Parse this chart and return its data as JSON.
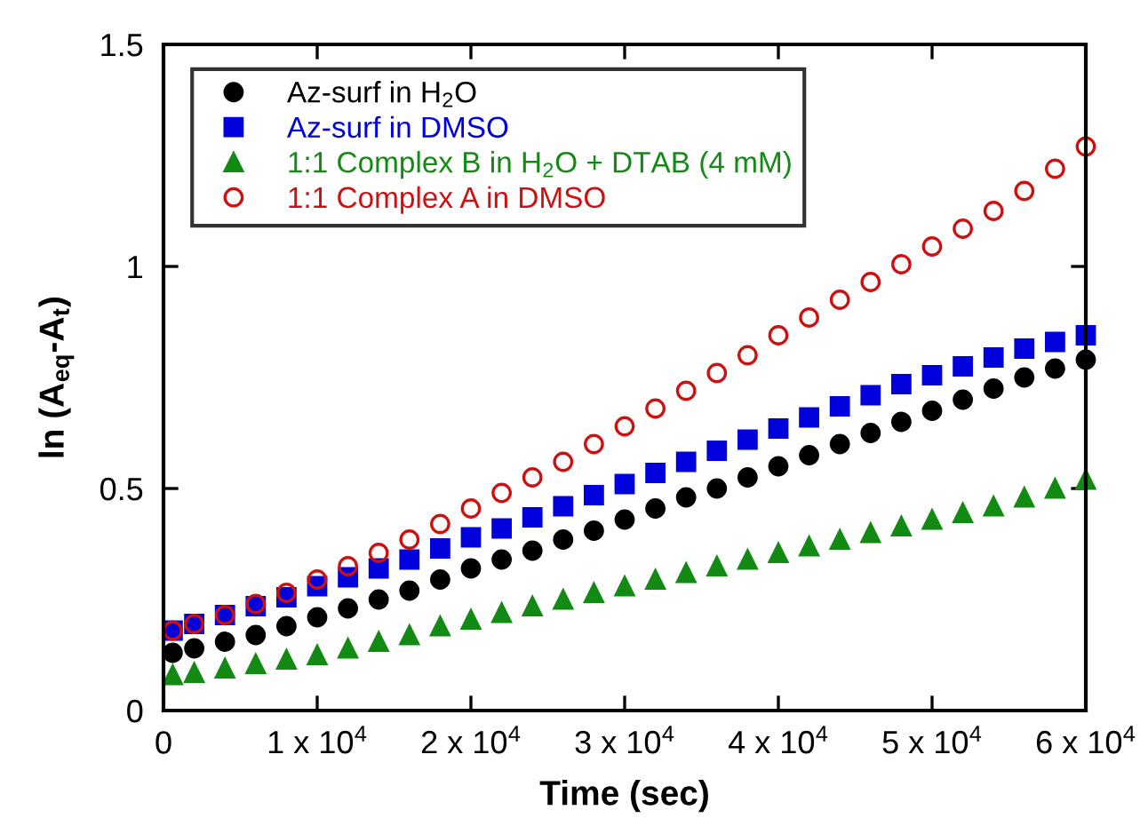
{
  "chart_data": {
    "type": "scatter",
    "xlabel": "Time (sec)",
    "ylabel": "ln (A$_{eq}$-A$_{t}$)",
    "x": [
      600,
      2000,
      4000,
      6000,
      8000,
      10000,
      12000,
      14000,
      16000,
      18000,
      20000,
      22000,
      24000,
      26000,
      28000,
      30000,
      32000,
      34000,
      36000,
      38000,
      40000,
      42000,
      44000,
      46000,
      48000,
      50000,
      52000,
      54000,
      56000,
      58000,
      60000
    ],
    "series": [
      {
        "name": "Az-surf in H$_{2}$O",
        "color": "#000000",
        "marker": "circle",
        "values": [
          0.13,
          0.14,
          0.155,
          0.17,
          0.19,
          0.21,
          0.23,
          0.25,
          0.27,
          0.295,
          0.32,
          0.34,
          0.36,
          0.385,
          0.405,
          0.43,
          0.455,
          0.48,
          0.5,
          0.525,
          0.55,
          0.575,
          0.6,
          0.625,
          0.65,
          0.675,
          0.7,
          0.725,
          0.75,
          0.77,
          0.79
        ]
      },
      {
        "name": "Az-surf in DMSO",
        "color": "#0000dd",
        "marker": "square",
        "values": [
          0.18,
          0.195,
          0.215,
          0.235,
          0.255,
          0.28,
          0.3,
          0.32,
          0.34,
          0.365,
          0.39,
          0.41,
          0.435,
          0.46,
          0.485,
          0.51,
          0.535,
          0.56,
          0.585,
          0.61,
          0.635,
          0.66,
          0.685,
          0.71,
          0.735,
          0.755,
          0.775,
          0.795,
          0.815,
          0.83,
          0.845
        ]
      },
      {
        "name": "1:1 Complex B in H$_{2}$O + DTAB (4 mM)",
        "color": "#138a13",
        "marker": "triangle",
        "values": [
          0.08,
          0.085,
          0.095,
          0.105,
          0.115,
          0.125,
          0.14,
          0.155,
          0.17,
          0.19,
          0.205,
          0.22,
          0.235,
          0.25,
          0.265,
          0.28,
          0.295,
          0.31,
          0.325,
          0.34,
          0.355,
          0.37,
          0.385,
          0.4,
          0.415,
          0.43,
          0.445,
          0.46,
          0.48,
          0.5,
          0.52
        ]
      },
      {
        "name": "1:1 Complex A in DMSO",
        "color": "#cc1111",
        "marker": "circle",
        "values": [
          0.18,
          0.195,
          0.215,
          0.24,
          0.265,
          0.295,
          0.325,
          0.355,
          0.385,
          0.42,
          0.455,
          0.49,
          0.525,
          0.56,
          0.6,
          0.64,
          0.68,
          0.72,
          0.76,
          0.8,
          0.845,
          0.885,
          0.925,
          0.965,
          1.005,
          1.045,
          1.085,
          1.125,
          1.17,
          1.22,
          1.27
        ]
      }
    ],
    "xlim": [
      0,
      60000
    ],
    "ylim": [
      0,
      1.5
    ],
    "xticks": [
      0,
      {
        "value": 10000,
        "label": "1 x 10$^{4}$"
      },
      {
        "value": 20000,
        "label": "2 x 10$^{4}$"
      },
      {
        "value": 30000,
        "label": "3 x 10$^{4}$"
      },
      {
        "value": 40000,
        "label": "4 x 10$^{4}$"
      },
      {
        "value": 50000,
        "label": "5 x 10$^{4}$"
      },
      {
        "value": 60000,
        "label": "6 x 10$^{4}$"
      }
    ],
    "yticks": [
      0,
      0.5,
      1,
      1.5
    ],
    "grid": false,
    "legend": "top left"
  }
}
